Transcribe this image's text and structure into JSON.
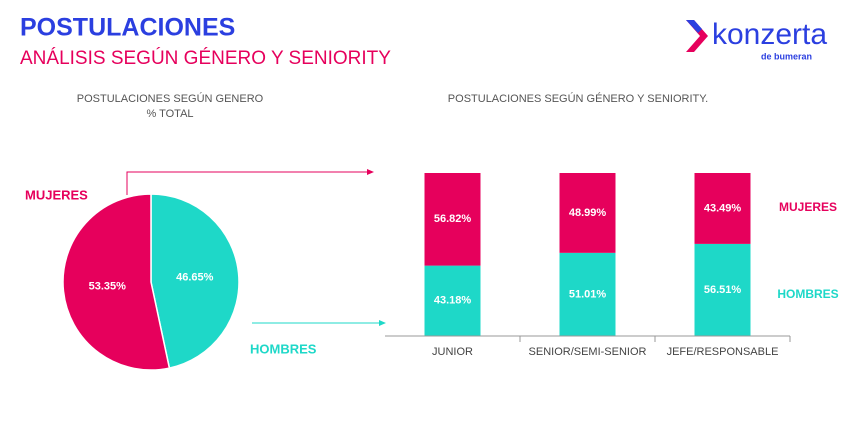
{
  "header": {
    "title": "POSTULACIONES",
    "subtitle": "ANÁLISIS SEGÚN GÉNERO Y SENIORITY",
    "logo": "konzerta",
    "logo_sub": "de bumeran"
  },
  "chart_data": [
    {
      "type": "pie",
      "title": "POSTULACIONES SEGÚN GENERO",
      "subtitle": "% TOTAL",
      "categories": [
        "MUJERES",
        "HOMBRES"
      ],
      "values": [
        53.35,
        46.65
      ],
      "value_labels": [
        "53.35%",
        "46.65%"
      ],
      "colors": [
        "#e6005c",
        "#1ed8c8"
      ]
    },
    {
      "type": "stacked_bar",
      "title": "POSTULACIONES SEGÚN GÉNERO Y SENIORITY.",
      "categories": [
        "JUNIOR",
        "SENIOR/SEMI-SENIOR",
        "JEFE/RESPONSABLE"
      ],
      "ylim": [
        0,
        100
      ],
      "series": [
        {
          "name": "HOMBRES",
          "color": "#1ed8c8",
          "values": [
            43.18,
            51.01,
            56.51
          ],
          "value_labels": [
            "43.18%",
            "51.01%",
            "56.51%"
          ]
        },
        {
          "name": "MUJERES",
          "color": "#e6005c",
          "values": [
            56.82,
            48.99,
            43.49
          ],
          "value_labels": [
            "56.82%",
            "48.99%",
            "43.49%"
          ]
        }
      ]
    }
  ]
}
